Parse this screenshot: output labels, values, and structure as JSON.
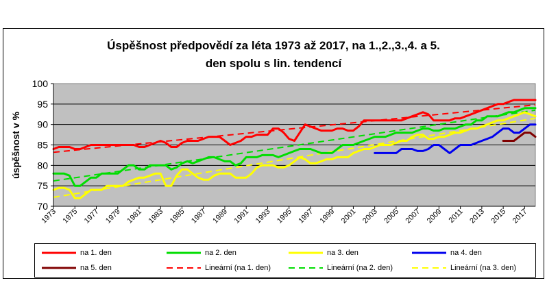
{
  "chart_data": {
    "type": "line",
    "title_line1": "Úspěšnost předpovědí za léta 1973 až 2017, na 1.,2.,3.,4. a 5.",
    "title_line2": "den spolu s lin. tendencí",
    "ylabel": "úspěšnost v %",
    "xlabel": "",
    "ylim": [
      70,
      100
    ],
    "yticks": [
      70,
      75,
      80,
      85,
      90,
      95,
      100
    ],
    "xticks": [
      "1973",
      "1975",
      "1977",
      "1979",
      "1981",
      "1983",
      "1985",
      "1987",
      "1989",
      "1991",
      "1993",
      "1995",
      "1997",
      "1999",
      "2001",
      "2003",
      "2005",
      "2007",
      "2009",
      "2011",
      "2013",
      "2015",
      "2017"
    ],
    "xlim": [
      1973,
      2018
    ],
    "grid": true,
    "plot_background": "#c0c0c0",
    "series": [
      {
        "name": "na 1. den",
        "color": "#ff0000",
        "dash": false,
        "x": [
          1973,
          1973.5,
          1974,
          1974.5,
          1975,
          1975.5,
          1976,
          1976.5,
          1977,
          1977.5,
          1978,
          1978.5,
          1979,
          1979.5,
          1980,
          1980.5,
          1981,
          1981.5,
          1982,
          1982.5,
          1983,
          1983.5,
          1984,
          1984.5,
          1985,
          1985.5,
          1986,
          1986.5,
          1987,
          1987.5,
          1988,
          1988.5,
          1989,
          1989.5,
          1990,
          1990.5,
          1991,
          1991.5,
          1992,
          1992.5,
          1993,
          1993.5,
          1994,
          1994.5,
          1995,
          1995.5,
          1996,
          1996.5,
          1997,
          1997.5,
          1998,
          1998.5,
          1999,
          1999.5,
          2000,
          2000.5,
          2001,
          2001.5,
          2002,
          2002.5,
          2003,
          2003.5,
          2004,
          2004.5,
          2005,
          2005.5,
          2006,
          2006.5,
          2007,
          2007.5,
          2008,
          2008.5,
          2009,
          2009.5,
          2010,
          2010.5,
          2011,
          2011.5,
          2012,
          2012.5,
          2013,
          2013.5,
          2014,
          2014.5,
          2015,
          2015.5,
          2016,
          2016.5,
          2017,
          2017.5,
          2018
        ],
        "values": [
          84,
          84.5,
          84.5,
          84.5,
          84,
          84,
          84.5,
          85,
          85,
          85,
          85,
          85,
          85,
          85,
          85,
          85,
          84.5,
          84.5,
          85,
          85.5,
          86,
          85.5,
          84.5,
          84.5,
          85.5,
          86,
          86,
          86,
          86.5,
          87,
          87,
          87,
          86,
          85,
          85.5,
          86,
          87,
          87,
          87.5,
          87.5,
          87.5,
          89,
          89,
          88,
          86.5,
          86,
          88,
          90,
          89.5,
          89,
          88.5,
          88.5,
          88.5,
          89,
          89,
          88.5,
          88.5,
          89.5,
          91,
          91,
          91,
          91,
          91,
          91,
          91,
          91,
          91.5,
          92,
          92.5,
          93,
          92.5,
          91,
          91,
          91,
          91,
          91.5,
          91.5,
          92,
          92.5,
          93,
          93.5,
          94,
          94.5,
          95,
          95,
          95.5,
          96,
          96,
          96,
          96,
          96
        ]
      },
      {
        "name": "na 2. den",
        "color": "#00dd00",
        "dash": false,
        "x": [
          1973,
          1973.5,
          1974,
          1974.5,
          1975,
          1975.5,
          1976,
          1976.5,
          1977,
          1977.5,
          1978,
          1978.5,
          1979,
          1979.5,
          1980,
          1980.5,
          1981,
          1981.5,
          1982,
          1982.5,
          1983,
          1983.5,
          1984,
          1984.5,
          1985,
          1985.5,
          1986,
          1986.5,
          1987,
          1987.5,
          1988,
          1988.5,
          1989,
          1989.5,
          1990,
          1990.5,
          1991,
          1991.5,
          1992,
          1992.5,
          1993,
          1993.5,
          1994,
          1994.5,
          1995,
          1995.5,
          1996,
          1996.5,
          1997,
          1997.5,
          1998,
          1998.5,
          1999,
          1999.5,
          2000,
          2000.5,
          2001,
          2001.5,
          2002,
          2002.5,
          2003,
          2003.5,
          2004,
          2004.5,
          2005,
          2005.5,
          2006,
          2006.5,
          2007,
          2007.5,
          2008,
          2008.5,
          2009,
          2009.5,
          2010,
          2010.5,
          2011,
          2011.5,
          2012,
          2012.5,
          2013,
          2013.5,
          2014,
          2014.5,
          2015,
          2015.5,
          2016,
          2016.5,
          2017,
          2017.5,
          2018
        ],
        "values": [
          78,
          78,
          78,
          77.5,
          75,
          75,
          76,
          77,
          77,
          78,
          78,
          78,
          78,
          79,
          80,
          80,
          79,
          79,
          80,
          80,
          80,
          80,
          79,
          79.5,
          80.5,
          81,
          80.5,
          81,
          81.5,
          82,
          82,
          81.5,
          81,
          81,
          80,
          80.5,
          82,
          82,
          82,
          82.5,
          82.5,
          82.5,
          82,
          82.5,
          83,
          83.5,
          84,
          84,
          84,
          83.5,
          83,
          83,
          83,
          84,
          85,
          85,
          85,
          85.5,
          86,
          86.5,
          87,
          87,
          87,
          87.5,
          88,
          88,
          88,
          88,
          88.5,
          89,
          89,
          88.5,
          88.5,
          89,
          89,
          89,
          89.5,
          90,
          90,
          91,
          91,
          92,
          92,
          92,
          92.5,
          93,
          93,
          93.5,
          94,
          94,
          94
        ]
      },
      {
        "name": "na 3. den",
        "color": "#ffff00",
        "dash": false,
        "x": [
          1973,
          1973.5,
          1974,
          1974.5,
          1975,
          1975.5,
          1976,
          1976.5,
          1977,
          1977.5,
          1978,
          1978.5,
          1979,
          1979.5,
          1980,
          1980.5,
          1981,
          1981.5,
          1982,
          1982.5,
          1983,
          1983.5,
          1984,
          1984.5,
          1985,
          1985.5,
          1986,
          1986.5,
          1987,
          1987.5,
          1988,
          1988.5,
          1989,
          1989.5,
          1990,
          1990.5,
          1991,
          1991.5,
          1992,
          1992.5,
          1993,
          1993.5,
          1994,
          1994.5,
          1995,
          1995.5,
          1996,
          1996.5,
          1997,
          1997.5,
          1998,
          1998.5,
          1999,
          1999.5,
          2000,
          2000.5,
          2001,
          2001.5,
          2002,
          2002.5,
          2003,
          2003.5,
          2004,
          2004.5,
          2005,
          2005.5,
          2006,
          2006.5,
          2007,
          2007.5,
          2008,
          2008.5,
          2009,
          2009.5,
          2010,
          2010.5,
          2011,
          2011.5,
          2012,
          2012.5,
          2013,
          2013.5,
          2014,
          2014.5,
          2015,
          2015.5,
          2016,
          2016.5,
          2017,
          2017.5,
          2018
        ],
        "values": [
          74,
          74.5,
          74.5,
          74,
          72,
          72,
          73,
          74,
          74,
          74,
          75,
          75,
          75,
          75,
          76,
          76.5,
          77,
          77,
          77.5,
          78,
          78,
          75,
          75,
          77.5,
          79,
          79,
          78,
          77,
          76.5,
          76.5,
          77.5,
          78,
          78,
          78,
          77,
          77,
          77,
          78,
          79.5,
          80,
          80,
          80,
          79.5,
          79.5,
          80,
          81,
          82,
          81.5,
          80.5,
          80.5,
          81,
          81.5,
          81.5,
          82,
          82,
          82,
          83,
          83.5,
          84,
          84,
          84.5,
          85,
          85,
          85,
          85.5,
          86,
          86,
          87,
          87.5,
          87.5,
          86.5,
          86.5,
          87,
          87,
          87.5,
          88,
          88,
          88.5,
          89,
          89,
          89.5,
          90,
          90.5,
          91,
          91,
          91.5,
          92,
          92.5,
          93,
          92.5,
          92
        ]
      },
      {
        "name": "na 4. den",
        "color": "#0000ee",
        "dash": false,
        "x": [
          2003,
          2003.5,
          2004,
          2004.5,
          2005,
          2005.5,
          2006,
          2006.5,
          2007,
          2007.5,
          2008,
          2008.5,
          2009,
          2009.5,
          2010,
          2010.5,
          2011,
          2011.5,
          2012,
          2012.5,
          2013,
          2013.5,
          2014,
          2014.5,
          2015,
          2015.5,
          2016,
          2016.5,
          2017,
          2017.5,
          2018
        ],
        "values": [
          83,
          83,
          83,
          83,
          83,
          84,
          84,
          84,
          83.5,
          83.5,
          84,
          85,
          85,
          84,
          83,
          84,
          85,
          85,
          85,
          85.5,
          86,
          86.5,
          87,
          88,
          89,
          89,
          88,
          88,
          89,
          90,
          90
        ]
      },
      {
        "name": "na 5. den",
        "color": "#800000",
        "dash": false,
        "x": [
          2015,
          2015.5,
          2016,
          2016.5,
          2017,
          2017.5,
          2018
        ],
        "values": [
          86,
          86,
          86,
          87,
          88,
          88,
          87
        ]
      },
      {
        "name": "Lineární (na 1. den)",
        "color": "#ff0000",
        "dash": true,
        "x": [
          1973,
          2018
        ],
        "values": [
          83.2,
          94.8
        ]
      },
      {
        "name": "Lineární (na 2. den)",
        "color": "#00dd00",
        "dash": true,
        "x": [
          1973,
          2018
        ],
        "values": [
          76.2,
          93.5
        ]
      },
      {
        "name": "Lineární (na 3. den)",
        "color": "#ffff00",
        "dash": true,
        "x": [
          1973,
          2018
        ],
        "values": [
          72.2,
          91.5
        ]
      }
    ]
  }
}
